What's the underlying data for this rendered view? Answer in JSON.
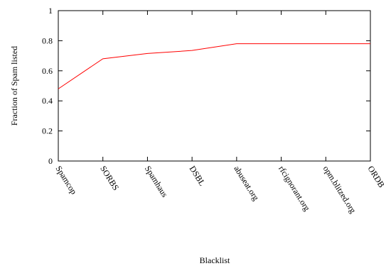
{
  "chart_data": {
    "type": "line",
    "title": "",
    "xlabel": "Blacklist",
    "ylabel": "Fraction of Spam listed",
    "categories": [
      "Spamcop",
      "SORBS",
      "Spamhaus",
      "DSBL",
      "abuseat.org",
      "rfcignorant.org",
      "opm.blitzed.org",
      "ORDB"
    ],
    "ylim": [
      0,
      1
    ],
    "yticks": [
      0,
      0.2,
      0.4,
      0.6,
      0.8,
      1
    ],
    "ytick_labels": [
      "0",
      "0.2",
      "0.4",
      "0.6",
      "0.8",
      "1"
    ],
    "grid": false,
    "series": [
      {
        "color": "#ff0000",
        "values": [
          0.48,
          0.68,
          0.715,
          0.735,
          0.78,
          0.78,
          0.78,
          0.78
        ]
      }
    ]
  }
}
